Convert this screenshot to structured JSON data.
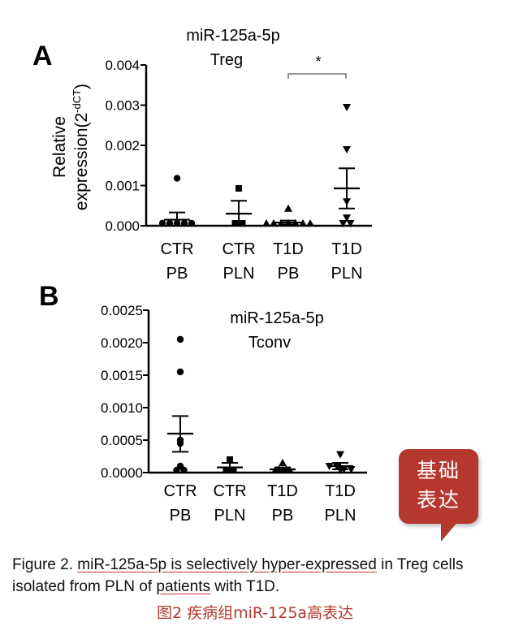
{
  "chart_data": [
    {
      "type": "scatter",
      "panel_label": "A",
      "title_line1": "miR-125a-5p",
      "title_line2": "Treg",
      "ylabel_line1": "Relative",
      "ylabel_line2": "expression(2",
      "ylabel_sup": "-dCT",
      "ylabel_close": ")",
      "ylim": [
        0,
        0.004
      ],
      "yticks": [
        "0.004",
        "0.003",
        "0.002",
        "0.001",
        "0.000"
      ],
      "ytick_values": [
        0.004,
        0.003,
        0.002,
        0.001,
        0.0
      ],
      "groups": [
        {
          "label1": "CTR",
          "label2": "PB",
          "marker": "circle",
          "mean": 0.00015,
          "sem_low": 0.0,
          "sem_high": 0.00033,
          "points": [
            0.00118,
            0.0,
            0.0,
            0.0,
            0.0,
            0.0
          ]
        },
        {
          "label1": "CTR",
          "label2": "PLN",
          "marker": "square",
          "mean": 0.0003,
          "sem_low": 0.0,
          "sem_high": 0.00062,
          "points": [
            0.00093,
            0.0,
            0.0
          ]
        },
        {
          "label1": "T1D",
          "label2": "PB",
          "marker": "triangle-up",
          "mean": 8e-05,
          "sem_low": 3e-05,
          "sem_high": 0.00013,
          "points": [
            0.00043,
            5e-05,
            5e-05,
            5e-05,
            0.0,
            0.0,
            0.0,
            0.0
          ]
        },
        {
          "label1": "T1D",
          "label2": "PLN",
          "marker": "triangle-down",
          "mean": 0.00093,
          "sem_low": 0.00043,
          "sem_high": 0.00143,
          "points": [
            0.00295,
            0.0019,
            0.0006,
            0.0002,
            0.0,
            0.0
          ]
        }
      ],
      "annotation": "*"
    },
    {
      "type": "scatter",
      "panel_label": "B",
      "title_line1": "miR-125a-5p",
      "title_line2": "Tconv",
      "ylim": [
        0,
        0.0025
      ],
      "yticks": [
        "0.0025",
        "0.0020",
        "0.0015",
        "0.0010",
        "0.0005",
        "0.0000"
      ],
      "ytick_values": [
        0.0025,
        0.002,
        0.0015,
        0.001,
        0.0005,
        0.0
      ],
      "groups": [
        {
          "label1": "CTR",
          "label2": "PB",
          "marker": "circle",
          "mean": 0.0006,
          "sem_low": 0.00032,
          "sem_high": 0.00087,
          "points": [
            0.00205,
            0.00155,
            0.0005,
            0.00045,
            0.0001,
            0.0,
            0.0
          ]
        },
        {
          "label1": "CTR",
          "label2": "PLN",
          "marker": "square",
          "mean": 8e-05,
          "sem_low": 0.0,
          "sem_high": 0.00015,
          "points": [
            0.0002,
            0.0,
            0.0
          ]
        },
        {
          "label1": "T1D",
          "label2": "PB",
          "marker": "triangle-up",
          "mean": 5e-05,
          "sem_low": 2e-05,
          "sem_high": 8e-05,
          "points": [
            0.00015,
            5e-05,
            5e-05,
            0.0,
            0.0,
            0.0
          ]
        },
        {
          "label1": "T1D",
          "label2": "PLN",
          "marker": "triangle-down",
          "mean": 0.0001,
          "sem_low": 5e-05,
          "sem_high": 0.00015,
          "points": [
            0.00028,
            0.0001,
            0.0001,
            5e-05,
            5e-05,
            0.0
          ]
        }
      ]
    }
  ],
  "caption": {
    "p1": "Figure 2. ",
    "p2": "miR-125a-5p is selectively hyper-expressed",
    "p3": " in Treg cells isolated from PLN of ",
    "p4": "patients",
    "p5": " with T1D."
  },
  "cn_caption": "图2 疾病组miR-125a高表达",
  "badge": {
    "line1": "基础",
    "line2": "表达"
  },
  "colors": {
    "badge": "#b5382f",
    "cn_caption": "#b23a2e",
    "underline": "#c0392b",
    "ink": "#000000"
  }
}
